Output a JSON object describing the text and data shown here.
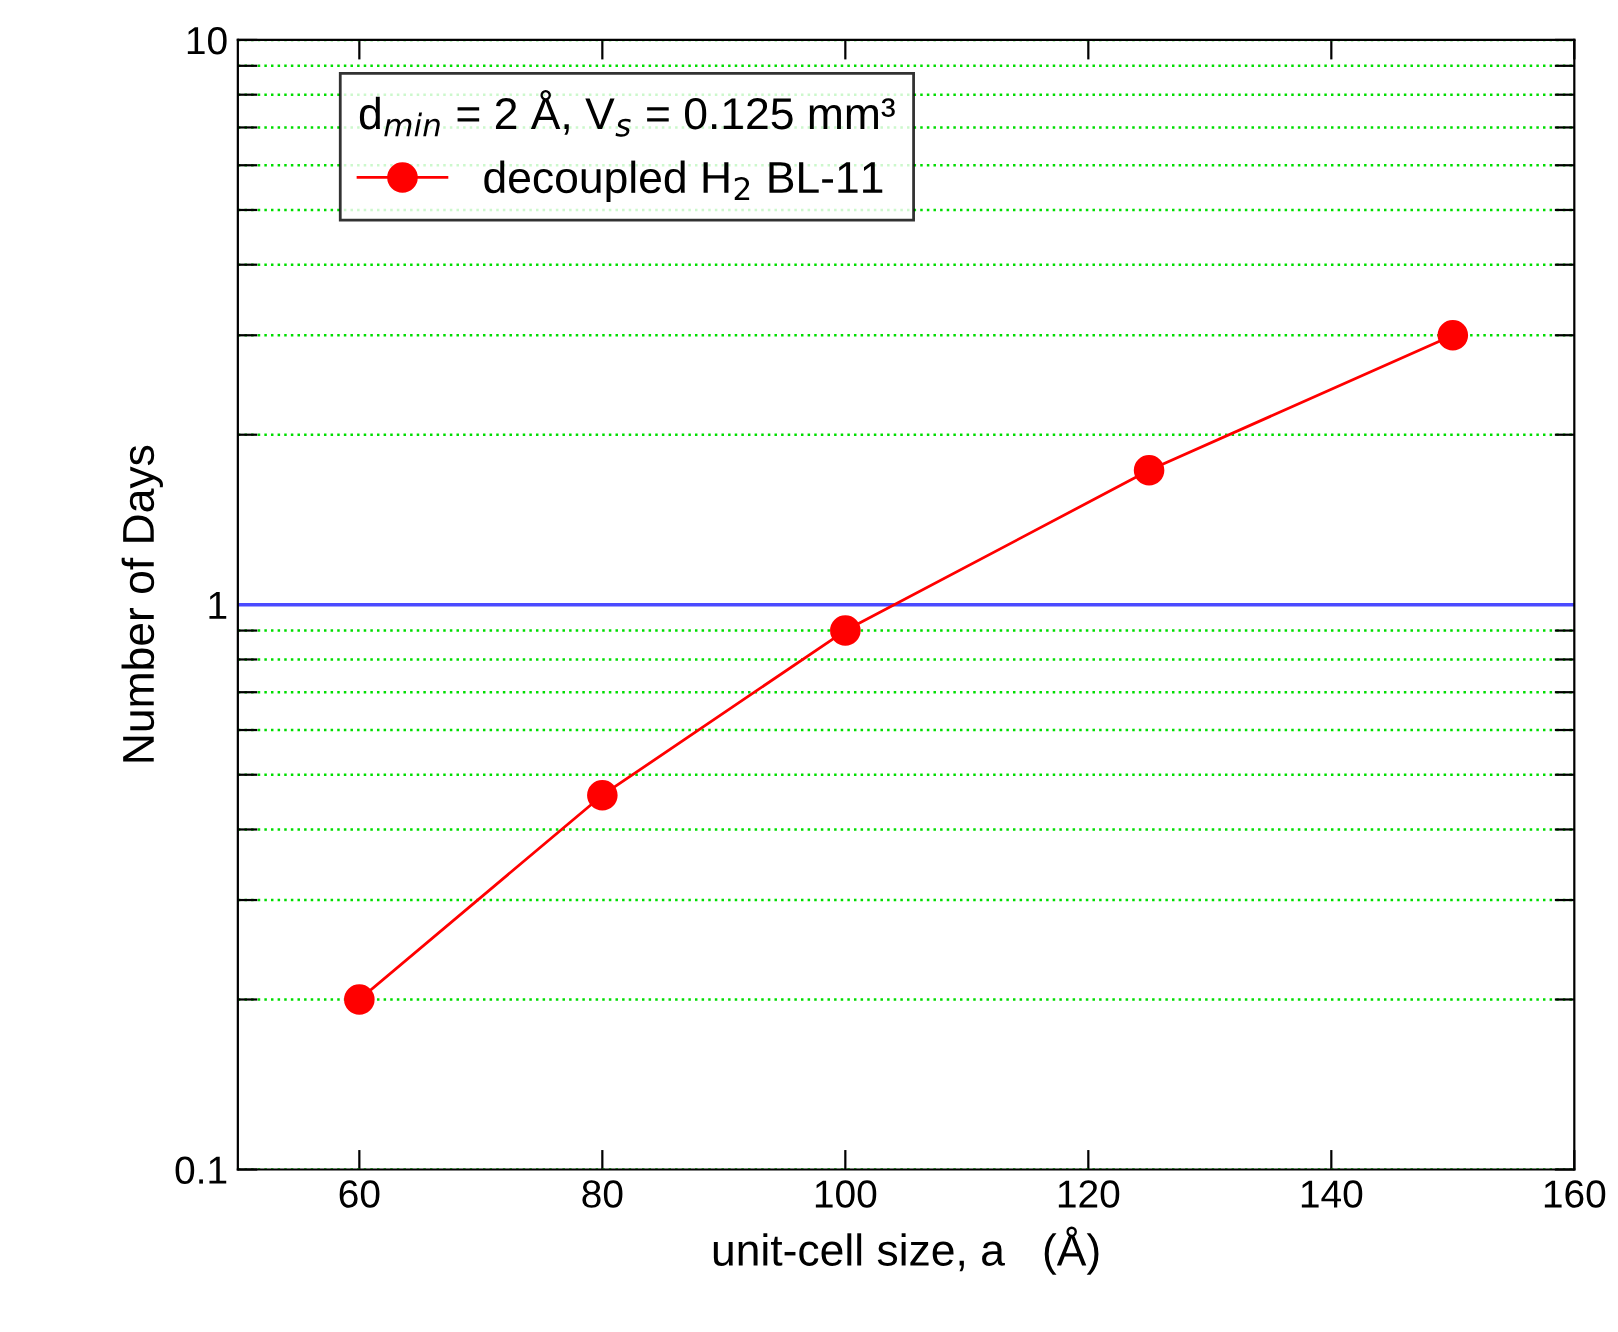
{
  "chart_data": {
    "type": "line",
    "xlabel": "unit-cell size, a   (Å)",
    "ylabel": "Number of Days",
    "legend_title": "d$_{min}$ = 2 Å, V$_{s}$ = 0.125 mm³",
    "x": [
      60,
      80,
      100,
      125,
      150
    ],
    "series": [
      {
        "name": "decoupled H$_{2}$ BL-11",
        "color": "#ff0000",
        "values": [
          0.2,
          0.46,
          0.9,
          1.73,
          3.0
        ]
      }
    ],
    "log": "y",
    "xlim": [
      50,
      160
    ],
    "xticks": [
      60,
      80,
      100,
      120,
      140,
      160
    ],
    "ylim": [
      0.1,
      10
    ],
    "yticks": [
      {
        "value": 0.1,
        "label": "0.1"
      },
      {
        "value": 0.2,
        "label": null
      },
      {
        "value": 0.3,
        "label": null
      },
      {
        "value": 0.4,
        "label": null
      },
      {
        "value": 0.5,
        "label": null
      },
      {
        "value": 0.6,
        "label": null
      },
      {
        "value": 0.7,
        "label": null
      },
      {
        "value": 0.8,
        "label": null
      },
      {
        "value": 0.9,
        "label": null
      },
      {
        "value": 1,
        "label": "1"
      },
      {
        "value": 2,
        "label": null
      },
      {
        "value": 3,
        "label": null
      },
      {
        "value": 4,
        "label": null
      },
      {
        "value": 5,
        "label": null
      },
      {
        "value": 6,
        "label": null
      },
      {
        "value": 7,
        "label": null
      },
      {
        "value": 8,
        "label": null
      },
      {
        "value": 9,
        "label": null
      },
      {
        "value": 10,
        "label": "10"
      }
    ],
    "grid": "y",
    "ref_lines": [
      {
        "axis": "y",
        "value": 1,
        "color": "#4a4aff"
      }
    ],
    "legend": "top left",
    "marker": "circle",
    "line_style": "solid"
  }
}
